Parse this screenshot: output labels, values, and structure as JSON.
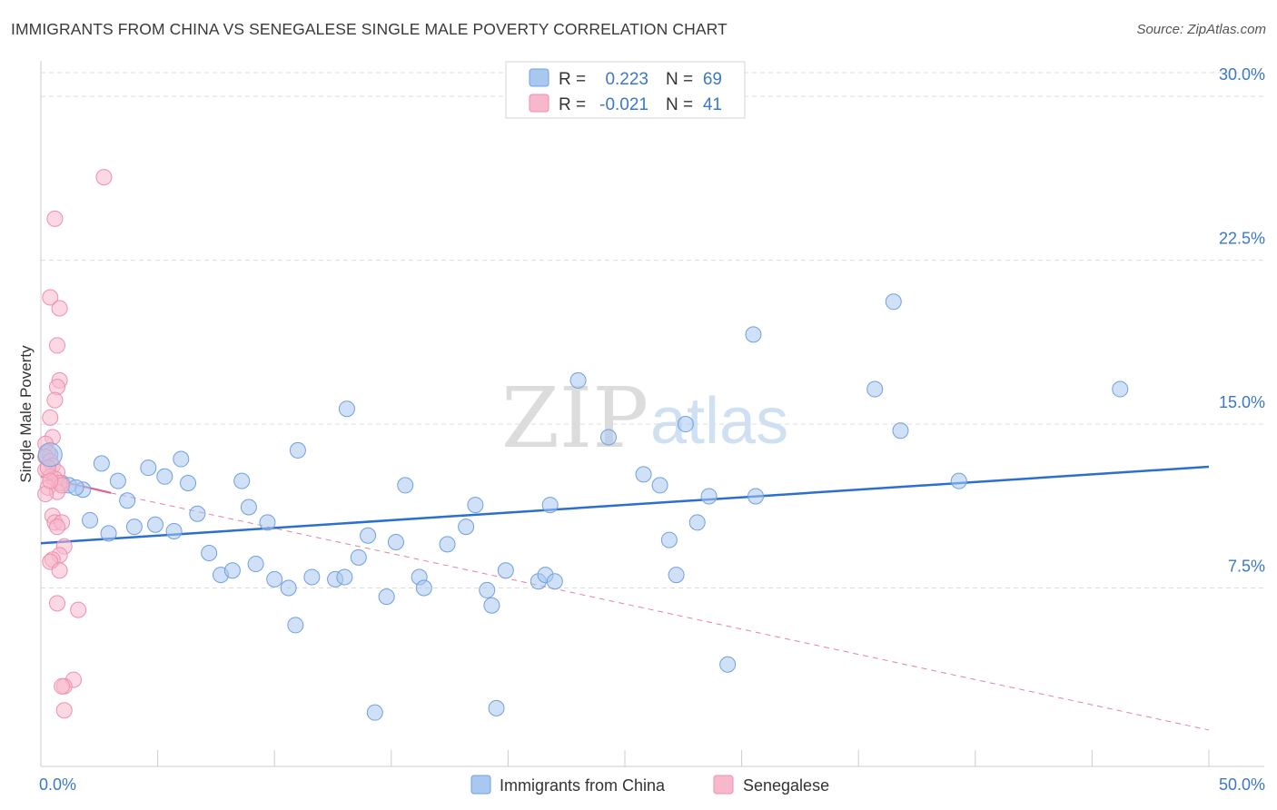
{
  "header": {
    "title": "IMMIGRANTS FROM CHINA VS SENEGALESE SINGLE MALE POVERTY CORRELATION CHART",
    "source": "Source: ZipAtlas.com"
  },
  "watermark": {
    "zip": "ZIP",
    "atlas": "atlas"
  },
  "stats": [
    {
      "r_label": "R =",
      "r_value": "0.223",
      "n_label": "N =",
      "n_value": "69",
      "color": "#a9c8f0"
    },
    {
      "r_label": "R =",
      "r_value": "-0.021",
      "n_label": "N =",
      "n_value": "41",
      "color": "#f7b8cb"
    }
  ],
  "chart_data": {
    "type": "scatter",
    "title": "IMMIGRANTS FROM CHINA VS SENEGALESE SINGLE MALE POVERTY CORRELATION CHART",
    "xlabel": "",
    "ylabel": "Single Male Poverty",
    "xlim": [
      0,
      50
    ],
    "ylim": [
      0,
      31.5
    ],
    "x_tick_labels": [
      "0.0%",
      "50.0%"
    ],
    "y_ticks": [
      7.5,
      15.0,
      22.5,
      30.0
    ],
    "y_tick_labels": [
      "7.5%",
      "15.0%",
      "22.5%",
      "30.0%"
    ],
    "grid": true,
    "legend_position": "bottom",
    "series": [
      {
        "name": "Immigrants from China",
        "color": "#a9c8f0",
        "stroke": "#6fa0e0",
        "trend_color": "#2c6fd1",
        "trend": [
          [
            0,
            9.55
          ],
          [
            50,
            13.05
          ]
        ],
        "points": [
          [
            0.4,
            13.6
          ],
          [
            0.9,
            12.3
          ],
          [
            1.2,
            12.2
          ],
          [
            1.8,
            12.0
          ],
          [
            2.1,
            10.6
          ],
          [
            2.6,
            13.2
          ],
          [
            2.9,
            10.0
          ],
          [
            3.3,
            12.4
          ],
          [
            3.7,
            11.5
          ],
          [
            4.0,
            10.3
          ],
          [
            4.6,
            13.0
          ],
          [
            4.9,
            10.4
          ],
          [
            5.3,
            12.6
          ],
          [
            5.7,
            10.1
          ],
          [
            6.0,
            13.4
          ],
          [
            6.3,
            12.3
          ],
          [
            6.7,
            10.9
          ],
          [
            7.2,
            9.1
          ],
          [
            7.7,
            8.1
          ],
          [
            8.2,
            8.3
          ],
          [
            8.6,
            12.4
          ],
          [
            8.9,
            11.2
          ],
          [
            9.2,
            8.6
          ],
          [
            9.7,
            10.5
          ],
          [
            10.0,
            7.9
          ],
          [
            10.6,
            7.5
          ],
          [
            10.9,
            5.8
          ],
          [
            11.0,
            13.8
          ],
          [
            11.6,
            8.0
          ],
          [
            12.6,
            7.9
          ],
          [
            13.0,
            8.0
          ],
          [
            13.1,
            15.7
          ],
          [
            13.6,
            8.9
          ],
          [
            14.0,
            9.9
          ],
          [
            14.3,
            1.8
          ],
          [
            14.8,
            7.1
          ],
          [
            15.2,
            9.6
          ],
          [
            15.6,
            12.2
          ],
          [
            16.2,
            8.0
          ],
          [
            16.4,
            7.5
          ],
          [
            17.4,
            9.5
          ],
          [
            18.2,
            10.3
          ],
          [
            18.6,
            11.3
          ],
          [
            19.1,
            7.4
          ],
          [
            19.3,
            6.7
          ],
          [
            19.5,
            2.0
          ],
          [
            19.9,
            8.3
          ],
          [
            21.3,
            7.8
          ],
          [
            21.6,
            8.1
          ],
          [
            21.8,
            11.3
          ],
          [
            22.0,
            7.8
          ],
          [
            23.0,
            17.0
          ],
          [
            24.3,
            14.4
          ],
          [
            25.8,
            12.7
          ],
          [
            26.5,
            12.2
          ],
          [
            26.9,
            9.7
          ],
          [
            27.2,
            8.1
          ],
          [
            27.6,
            15.0
          ],
          [
            28.1,
            10.5
          ],
          [
            28.6,
            11.7
          ],
          [
            29.4,
            4.0
          ],
          [
            30.5,
            19.1
          ],
          [
            30.6,
            11.7
          ],
          [
            35.7,
            16.6
          ],
          [
            36.5,
            20.6
          ],
          [
            36.8,
            14.7
          ],
          [
            39.3,
            12.4
          ],
          [
            46.2,
            16.6
          ],
          [
            1.5,
            12.1
          ]
        ]
      },
      {
        "name": "Senegalese",
        "color": "#f7b8cb",
        "stroke": "#ee8fae",
        "trend_color": "#e0608f",
        "trend": [
          [
            0,
            12.6
          ],
          [
            3.0,
            11.85
          ]
        ],
        "trend_extended": [
          [
            3.0,
            11.85
          ],
          [
            50,
            1.0
          ]
        ],
        "points": [
          [
            2.7,
            26.3
          ],
          [
            0.6,
            24.4
          ],
          [
            0.4,
            20.8
          ],
          [
            0.8,
            20.3
          ],
          [
            0.7,
            18.6
          ],
          [
            0.8,
            17.0
          ],
          [
            0.7,
            16.7
          ],
          [
            0.6,
            16.1
          ],
          [
            0.4,
            15.3
          ],
          [
            0.5,
            14.4
          ],
          [
            0.2,
            14.1
          ],
          [
            0.3,
            13.7
          ],
          [
            0.2,
            13.5
          ],
          [
            0.4,
            13.3
          ],
          [
            0.5,
            13.1
          ],
          [
            0.2,
            12.9
          ],
          [
            0.7,
            12.8
          ],
          [
            0.4,
            12.6
          ],
          [
            0.6,
            12.5
          ],
          [
            0.8,
            12.3
          ],
          [
            0.3,
            12.1
          ],
          [
            0.7,
            11.9
          ],
          [
            0.2,
            11.8
          ],
          [
            0.5,
            10.8
          ],
          [
            0.6,
            10.5
          ],
          [
            0.9,
            10.5
          ],
          [
            0.7,
            10.3
          ],
          [
            1.0,
            9.4
          ],
          [
            0.8,
            9.0
          ],
          [
            0.5,
            8.8
          ],
          [
            0.4,
            8.7
          ],
          [
            0.8,
            8.3
          ],
          [
            0.7,
            6.8
          ],
          [
            1.6,
            6.5
          ],
          [
            1.4,
            3.3
          ],
          [
            1.0,
            3.0
          ],
          [
            0.9,
            3.0
          ],
          [
            1.0,
            1.9
          ],
          [
            0.3,
            13.0
          ],
          [
            0.9,
            12.2
          ],
          [
            0.4,
            12.4
          ]
        ]
      }
    ]
  }
}
